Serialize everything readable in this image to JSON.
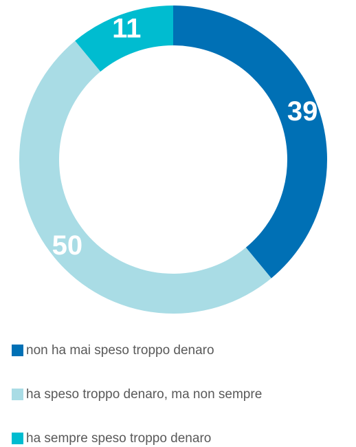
{
  "chart_data": {
    "type": "donut",
    "categories": [
      "non ha mai speso troppo denaro",
      "ha speso troppo denaro, ma non sempre",
      "ha sempre speso troppo denaro"
    ],
    "values": [
      39,
      50,
      11
    ],
    "colors": [
      "#0070b5",
      "#a9dce5",
      "#00bcd0"
    ]
  }
}
